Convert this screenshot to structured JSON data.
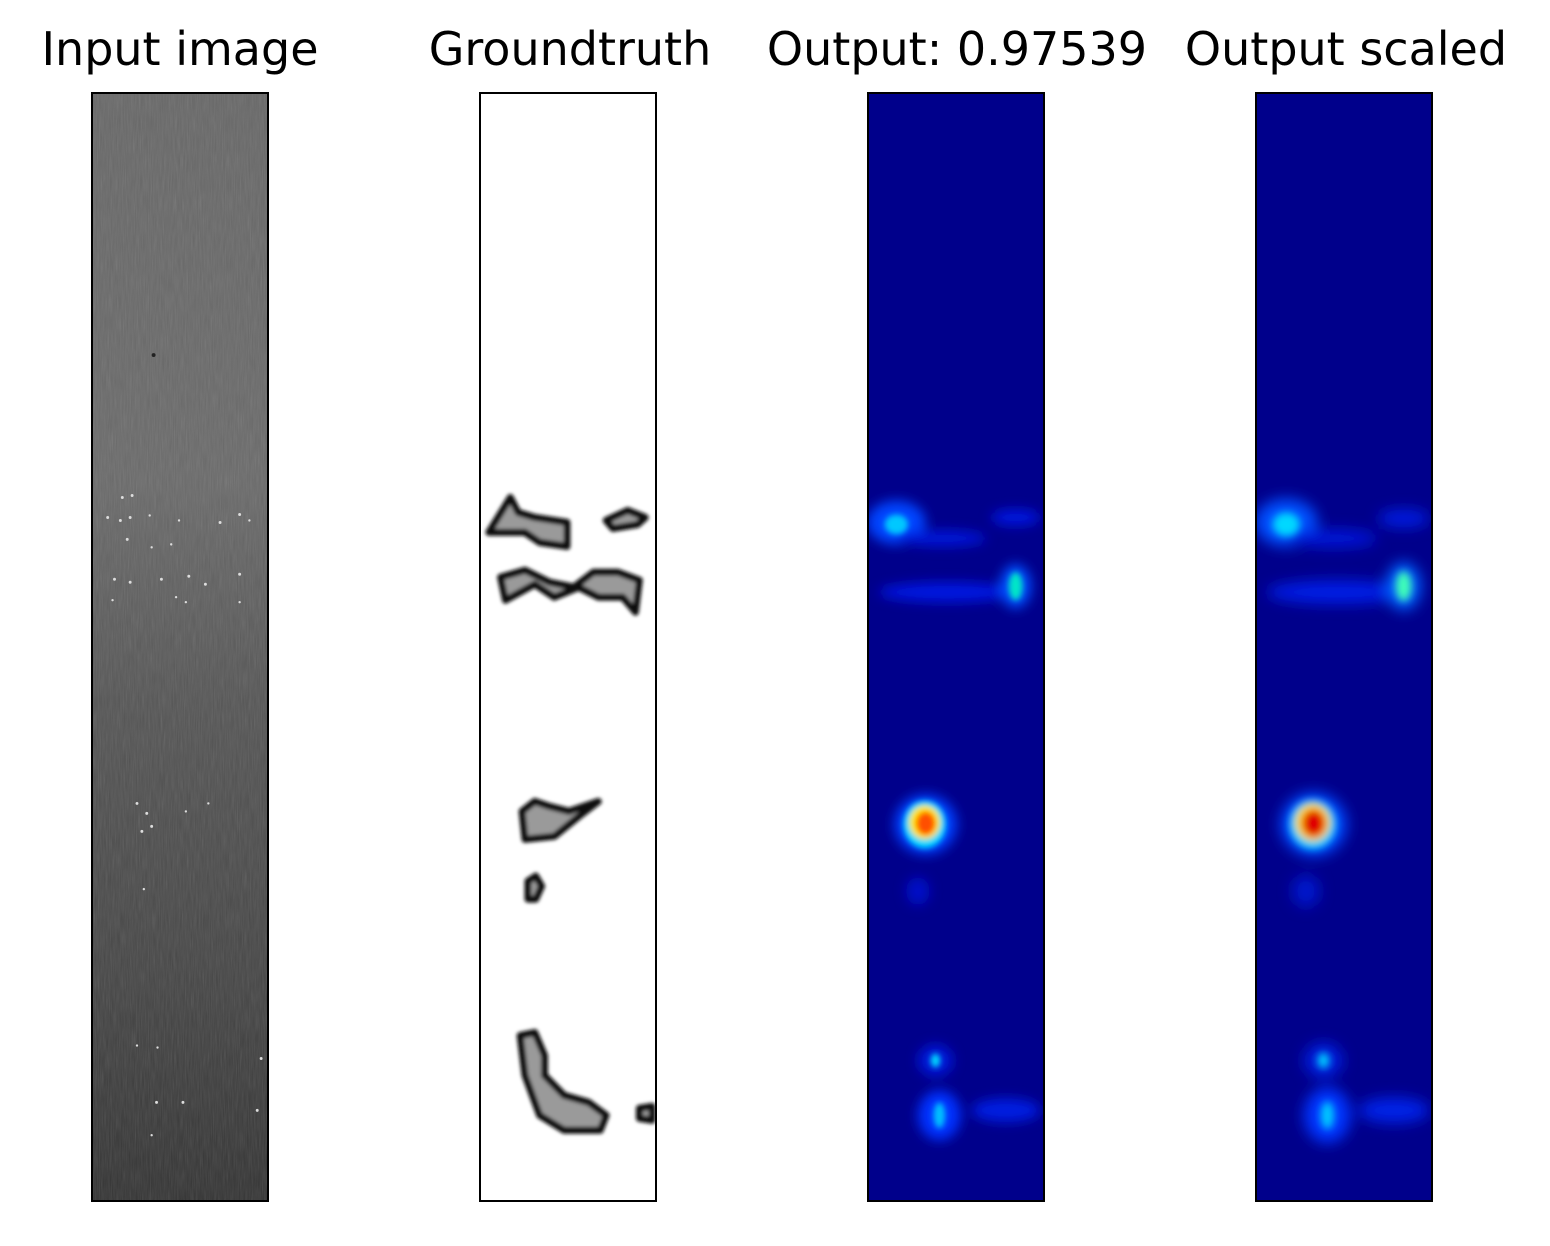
{
  "figure": {
    "panels": [
      {
        "title": "Input image",
        "colormap": "gray"
      },
      {
        "title": "Groundtruth",
        "colormap": "gray-inverted"
      },
      {
        "title": "Output: 0.97539",
        "colormap": "jet"
      },
      {
        "title": "Output scaled",
        "colormap": "jet"
      }
    ]
  }
}
